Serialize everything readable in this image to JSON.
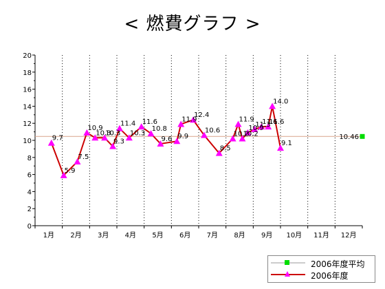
{
  "title": "< 燃費グラフ >",
  "chart_data": {
    "type": "line",
    "title": "< 燃費グラフ >",
    "xlabel": "",
    "ylabel": "",
    "ylim": [
      0,
      20
    ],
    "y_ticks": [
      0,
      2,
      4,
      6,
      8,
      10,
      12,
      14,
      16,
      18,
      20
    ],
    "categories": [
      "1月",
      "2月",
      "3月",
      "4月",
      "5月",
      "6月",
      "7月",
      "8月",
      "9月",
      "10月",
      "11月",
      "12月"
    ],
    "grid": "vertical dotted",
    "legend_position": "bottom-right",
    "series": [
      {
        "name": "2006年度",
        "color": "#cc0000",
        "marker_color": "#ff00ff",
        "marker": "triangle",
        "points": [
          {
            "x": 0.6,
            "y": 9.7,
            "label": "9.7"
          },
          {
            "x": 1.05,
            "y": 5.9,
            "label": "5.9"
          },
          {
            "x": 1.55,
            "y": 7.5,
            "label": "7.5"
          },
          {
            "x": 1.9,
            "y": 10.9,
            "label": "10.9"
          },
          {
            "x": 2.2,
            "y": 10.3,
            "label": "10.3"
          },
          {
            "x": 2.55,
            "y": 10.3,
            "label": "10.3"
          },
          {
            "x": 2.85,
            "y": 9.3,
            "label": "9.3"
          },
          {
            "x": 3.1,
            "y": 11.4,
            "label": "11.4"
          },
          {
            "x": 3.45,
            "y": 10.3,
            "label": "10.3"
          },
          {
            "x": 3.9,
            "y": 11.6,
            "label": "11.6"
          },
          {
            "x": 4.25,
            "y": 10.8,
            "label": "10.8"
          },
          {
            "x": 4.6,
            "y": 9.6,
            "label": "9.6"
          },
          {
            "x": 5.2,
            "y": 9.9,
            "label": "9.9"
          },
          {
            "x": 5.35,
            "y": 11.9,
            "label": "11.9"
          },
          {
            "x": 5.8,
            "y": 12.4,
            "label": "12.4"
          },
          {
            "x": 6.2,
            "y": 10.6,
            "label": "10.6"
          },
          {
            "x": 6.75,
            "y": 8.5,
            "label": "8.5"
          },
          {
            "x": 7.25,
            "y": 10.2,
            "label": "10.2"
          },
          {
            "x": 7.45,
            "y": 11.9,
            "label": "11.9"
          },
          {
            "x": 7.6,
            "y": 10.2,
            "label": "10.2"
          },
          {
            "x": 7.8,
            "y": 10.9,
            "label": "10.9"
          },
          {
            "x": 8.05,
            "y": 11.3,
            "label": "11.3"
          },
          {
            "x": 8.3,
            "y": 11.6,
            "label": "11.6"
          },
          {
            "x": 8.55,
            "y": 11.6,
            "label": "11.6"
          },
          {
            "x": 8.7,
            "y": 14.0,
            "label": "14.0"
          },
          {
            "x": 9.0,
            "y": 9.1,
            "label": "9.1"
          }
        ]
      },
      {
        "name": "2006年度平均",
        "color": "#d8a48c",
        "marker_color": "#00dd00",
        "marker": "square",
        "average": 10.46,
        "label": "10.46"
      }
    ]
  },
  "legend": {
    "items": [
      {
        "label": "2006年度平均"
      },
      {
        "label": "2006年度"
      }
    ]
  }
}
